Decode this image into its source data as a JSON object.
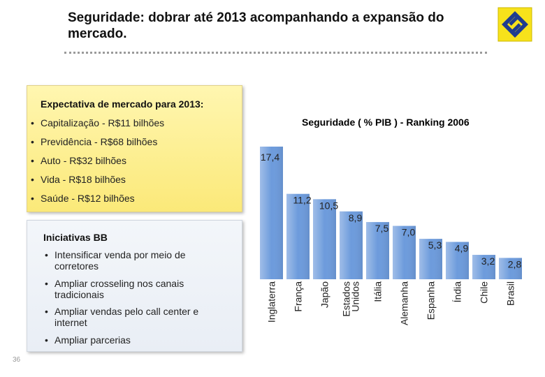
{
  "header": {
    "title": "Seguridade: dobrar até 2013 acompanhando a expansão do mercado."
  },
  "market_box": {
    "title": "Expectativa de mercado para 2013:",
    "items": [
      "Capitalização - R$11 bilhões",
      "Previdência - R$68 bilhões",
      "Auto - R$32 bilhões",
      "Vida - R$18 bilhões",
      "Saúde - R$12 bilhões"
    ]
  },
  "initiatives_box": {
    "title": "Iniciativas BB",
    "items": [
      "Intensificar venda por meio de corretores",
      "Ampliar crosseling nos canais tradicionais",
      "Ampliar vendas pelo call center e internet",
      "Ampliar parcerias"
    ]
  },
  "page_number": "36",
  "chart_data": {
    "type": "bar",
    "title": "Seguridade ( % PIB ) - Ranking 2006",
    "categories": [
      "Inglaterra",
      "França",
      "Japão",
      "Estados Unidos",
      "Itália",
      "Alemanha",
      "Espanha",
      "Índia",
      "Chile",
      "Brasil"
    ],
    "values": [
      17.4,
      11.2,
      10.5,
      8.9,
      7.5,
      7.0,
      5.3,
      4.9,
      3.2,
      2.8
    ],
    "value_labels": [
      "17,4",
      "11,2",
      "10,5",
      "8,9",
      "7,5",
      "7,0",
      "5,3",
      "4,9",
      "3,2",
      "2,8"
    ],
    "color": "#6d9bdc"
  }
}
